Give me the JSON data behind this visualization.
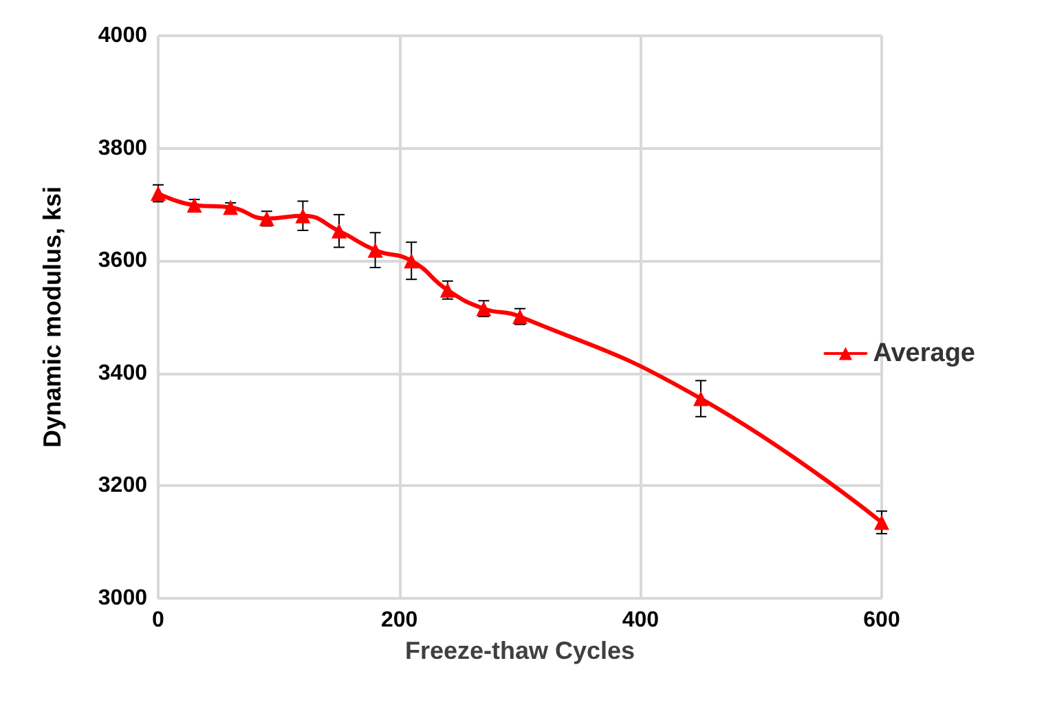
{
  "chart_data": {
    "type": "line",
    "xlabel": "Freeze-thaw Cycles",
    "ylabel": "Dynamic modulus, ksi",
    "x": [
      0,
      30,
      60,
      90,
      120,
      150,
      180,
      210,
      240,
      270,
      300,
      450,
      600
    ],
    "series": [
      {
        "name": "Average",
        "color": "#ff0000",
        "values": [
          3720,
          3699,
          3695,
          3675,
          3680,
          3653,
          3619,
          3600,
          3548,
          3515,
          3501,
          3355,
          3135
        ],
        "errors": [
          15,
          10,
          8,
          13,
          26,
          29,
          31,
          33,
          16,
          14,
          14,
          32,
          20
        ]
      }
    ],
    "xlim": [
      0,
      600
    ],
    "xticks": [
      0,
      200,
      400,
      600
    ],
    "ylim": [
      3000,
      4000
    ],
    "yticks": [
      3000,
      3200,
      3400,
      3600,
      3800,
      4000
    ],
    "grid": true,
    "legend": "right",
    "marker": "triangle",
    "line_style": "solid"
  }
}
